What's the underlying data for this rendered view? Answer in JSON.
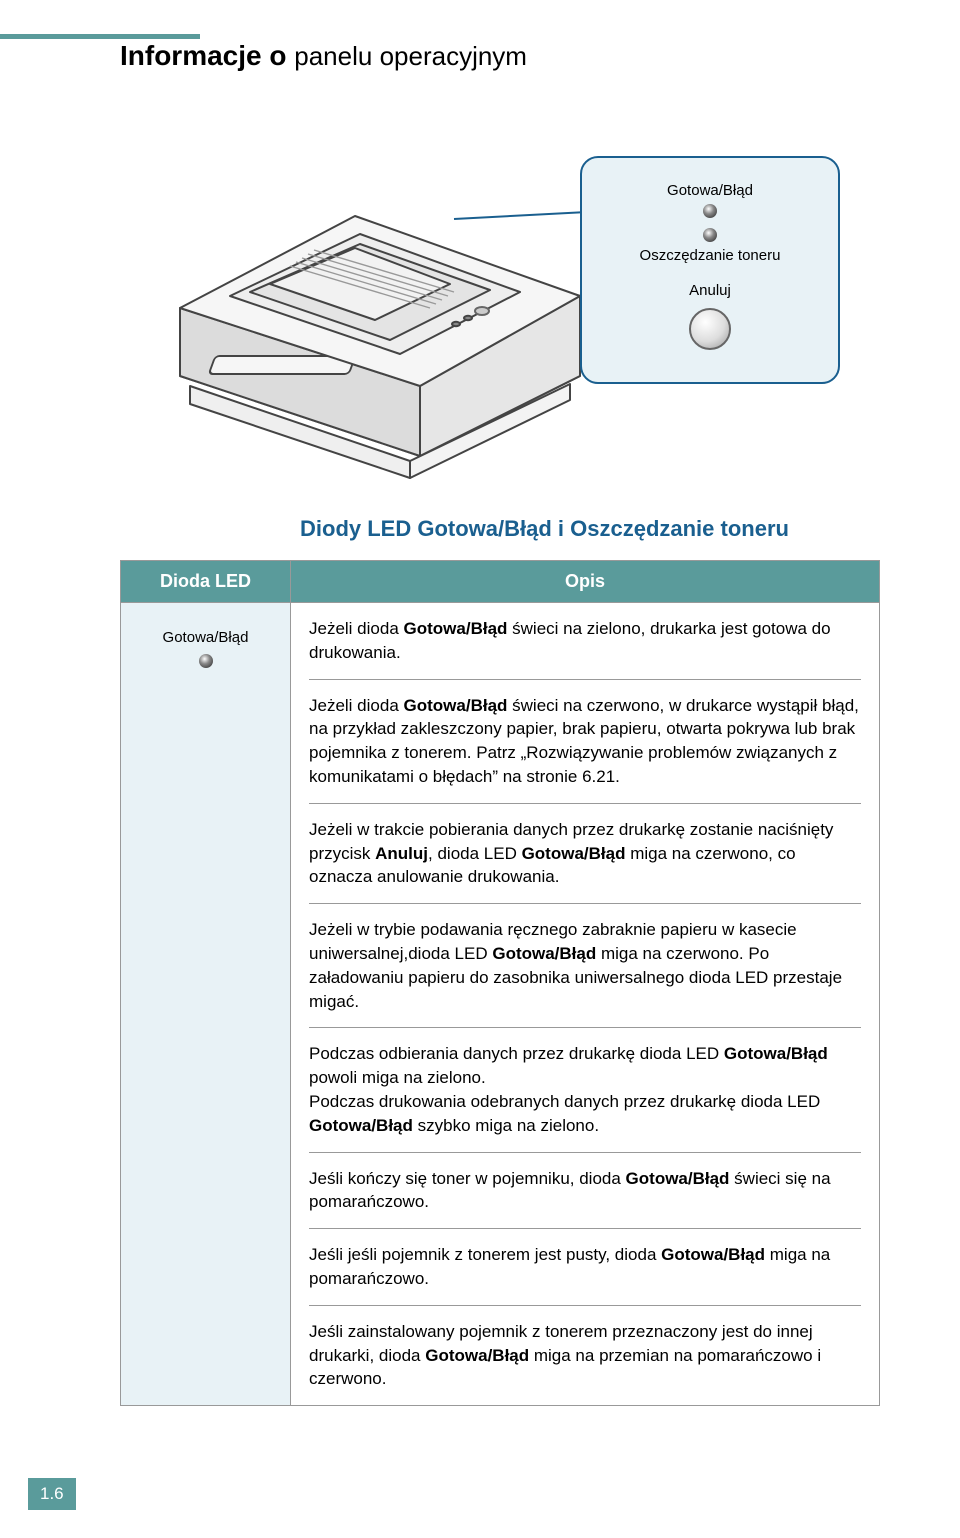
{
  "colors": {
    "tealBar": "#5a9b9b",
    "accentBlue": "#1a5f8f",
    "panelBg": "#e8f2f6",
    "border": "#999999",
    "textBlack": "#000000",
    "white": "#ffffff"
  },
  "title": {
    "bold": "Informacje o",
    "rest": "panelu operacyjnym"
  },
  "callout": {
    "led1": "Gotowa/Błąd",
    "led2": "Oszczędzanie toneru",
    "button": "Anuluj"
  },
  "sectionTitle": "Diody LED Gotowa/Błąd i Oszczędzanie toneru",
  "table": {
    "header1": "Dioda LED",
    "header2": "Opis",
    "ledLabel": "Gotowa/Błąd",
    "rows": [
      {
        "html": "Jeżeli dioda <span class=\"bold\">Gotowa/Błąd</span> świeci na zielono, drukarka jest gotowa do drukowania."
      },
      {
        "html": "Jeżeli dioda <span class=\"bold\">Gotowa/Błąd</span> świeci na czerwono, w drukarce wystąpił błąd, na przykład zakleszczony papier, brak papieru, otwarta pokrywa lub brak pojemnika z tonerem. Patrz „Rozwiązywanie problemów związanych z komunikatami o błędach” na stronie 6.21."
      },
      {
        "html": "Jeżeli w trakcie pobierania danych przez drukarkę zostanie naciśnięty przycisk <span class=\"bold\">Anuluj</span>, dioda LED <span class=\"bold\">Gotowa/Błąd</span> miga na czerwono, co oznacza anulowanie drukowania."
      },
      {
        "html": "Jeżeli w trybie podawania ręcznego zabraknie papieru w kasecie uniwersalnej,dioda LED <span class=\"bold\">Gotowa/Błąd</span> miga na czerwono. Po załadowaniu papieru do zasobnika uniwersalnego dioda LED przestaje migać."
      },
      {
        "html": "Podczas odbierania danych przez drukarkę dioda LED <span class=\"bold\">Gotowa/Błąd</span> powoli miga na zielono.<br>Podczas drukowania odebranych danych przez drukarkę dioda LED <span class=\"bold\">Gotowa/Błąd</span> szybko miga na zielono."
      },
      {
        "html": "Jeśli kończy się toner w pojemniku, dioda <span class=\"bold\">Gotowa/Błąd</span> świeci się na pomarańczowo."
      },
      {
        "html": "Jeśli jeśli pojemnik z tonerem jest pusty, dioda <span class=\"bold\">Gotowa/Błąd</span> miga na pomarańczowo."
      },
      {
        "html": "Jeśli zainstalowany pojemnik z tonerem przeznaczony jest do innej drukarki, dioda <span class=\"bold\">Gotowa/Błąd</span> miga na przemian na pomarańczowo i czerwono."
      }
    ]
  },
  "pageNumber": "1.6"
}
